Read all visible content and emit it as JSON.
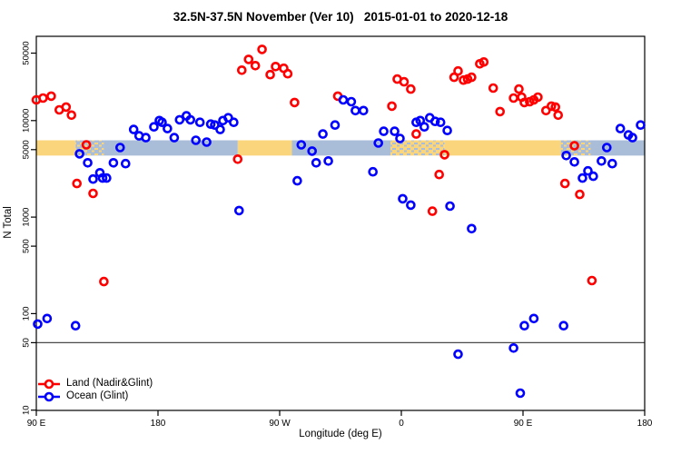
{
  "title": "32.5N-37.5N November (Ver 10)   2015-01-01 to 2020-12-18",
  "axes": {
    "x": {
      "label": "Longitude (deg E)",
      "range_deg": [
        90,
        540
      ],
      "ticks": [
        {
          "lon": 90,
          "label": "90 E"
        },
        {
          "lon": 180,
          "label": "180"
        },
        {
          "lon": 270,
          "label": "90 W"
        },
        {
          "lon": 360,
          "label": "0"
        },
        {
          "lon": 450,
          "label": "90 E"
        },
        {
          "lon": 540,
          "label": "180"
        }
      ]
    },
    "y": {
      "label": "N Total",
      "scale": "log10",
      "ticks": [
        {
          "value": 10,
          "label": "10"
        },
        {
          "value": 50,
          "label": "50"
        },
        {
          "value": 100,
          "label": "100"
        },
        {
          "value": 500,
          "label": "500"
        },
        {
          "value": 1000,
          "label": "1000"
        },
        {
          "value": 5000,
          "label": "5000"
        },
        {
          "value": 10000,
          "label": "10000"
        },
        {
          "value": 50000,
          "label": "50000"
        }
      ]
    }
  },
  "legend": [
    {
      "label": "Land (Nadir&Glint)",
      "color": "#ff0000"
    },
    {
      "label": "Ocean (Glint)",
      "color": "#0000ff"
    }
  ],
  "colors": {
    "land": "#ff0000",
    "ocean": "#0000ff",
    "band_land": "#fbd57c",
    "band_ocean": "#a9bdd9",
    "ref_line": "#4a4a4a",
    "frame": "#000000"
  },
  "reference": {
    "h_line_n": 50,
    "surface_band": {
      "n_low": 4340,
      "n_high": 6250,
      "segments": [
        {
          "from": 90,
          "to": 119,
          "type": "land"
        },
        {
          "from": 119,
          "to": 140,
          "type": "mixed-ocean"
        },
        {
          "from": 140,
          "to": 239,
          "type": "ocean"
        },
        {
          "from": 239,
          "to": 279,
          "type": "land"
        },
        {
          "from": 279,
          "to": 352,
          "type": "ocean"
        },
        {
          "from": 352,
          "to": 392,
          "type": "mixed-land"
        },
        {
          "from": 392,
          "to": 478,
          "type": "land"
        },
        {
          "from": 478,
          "to": 500,
          "type": "mixed-ocean"
        },
        {
          "from": 500,
          "to": 540,
          "type": "ocean"
        }
      ]
    }
  },
  "chart_data": {
    "type": "scatter",
    "xlabel": "Longitude (deg E)",
    "ylabel": "N Total",
    "x_axis_deg_east_continuous": [
      90,
      540
    ],
    "y_log_range": [
      10,
      60000
    ],
    "grid": false,
    "legend_position": "bottom-left",
    "series": [
      {
        "name": "Land (Nadir&Glint)",
        "color": "#ff0000",
        "points": [
          [
            90,
            16400
          ],
          [
            95,
            17100
          ],
          [
            101,
            17900
          ],
          [
            107,
            12900
          ],
          [
            112,
            13800
          ],
          [
            116,
            11400
          ],
          [
            120,
            2230
          ],
          [
            127,
            5610
          ],
          [
            132,
            1760
          ],
          [
            140,
            215
          ],
          [
            239,
            3980
          ],
          [
            242,
            33300
          ],
          [
            247,
            43100
          ],
          [
            252,
            37100
          ],
          [
            257,
            54600
          ],
          [
            263,
            29900
          ],
          [
            267,
            36300
          ],
          [
            273,
            34800
          ],
          [
            276,
            30600
          ],
          [
            281,
            15400
          ],
          [
            313,
            17900
          ],
          [
            353,
            14100
          ],
          [
            357,
            26900
          ],
          [
            362,
            25200
          ],
          [
            367,
            21200
          ],
          [
            371,
            7260
          ],
          [
            383,
            1150
          ],
          [
            388,
            2760
          ],
          [
            392,
            4430
          ],
          [
            399,
            28100
          ],
          [
            402,
            32600
          ],
          [
            406,
            26300
          ],
          [
            409,
            26900
          ],
          [
            412,
            28100
          ],
          [
            418,
            38700
          ],
          [
            421,
            40400
          ],
          [
            428,
            21700
          ],
          [
            433,
            12400
          ],
          [
            443,
            17100
          ],
          [
            447,
            21200
          ],
          [
            449,
            17500
          ],
          [
            451,
            15400
          ],
          [
            455,
            15700
          ],
          [
            458,
            16400
          ],
          [
            461,
            17500
          ],
          [
            467,
            12700
          ],
          [
            471,
            14100
          ],
          [
            474,
            13800
          ],
          [
            476,
            11400
          ],
          [
            481,
            2230
          ],
          [
            488,
            5490
          ],
          [
            492,
            1720
          ],
          [
            501,
            220
          ]
        ]
      },
      {
        "name": "Ocean (Glint)",
        "color": "#0000ff",
        "points": [
          [
            91,
            78
          ],
          [
            98,
            89
          ],
          [
            119,
            75
          ],
          [
            122,
            4530
          ],
          [
            128,
            3650
          ],
          [
            132,
            2480
          ],
          [
            137,
            2880
          ],
          [
            139,
            2540
          ],
          [
            142,
            2540
          ],
          [
            147,
            3650
          ],
          [
            152,
            5260
          ],
          [
            156,
            3580
          ],
          [
            162,
            8080
          ],
          [
            166,
            6950
          ],
          [
            171,
            6660
          ],
          [
            177,
            8620
          ],
          [
            181,
            10000
          ],
          [
            183,
            9600
          ],
          [
            187,
            8260
          ],
          [
            192,
            6660
          ],
          [
            196,
            10200
          ],
          [
            201,
            11200
          ],
          [
            204,
            10200
          ],
          [
            208,
            6250
          ],
          [
            211,
            9600
          ],
          [
            216,
            5980
          ],
          [
            219,
            9190
          ],
          [
            222,
            9000
          ],
          [
            226,
            8080
          ],
          [
            228,
            10000
          ],
          [
            232,
            10700
          ],
          [
            236,
            9600
          ],
          [
            240,
            1170
          ],
          [
            283,
            2380
          ],
          [
            286,
            5610
          ],
          [
            294,
            4830
          ],
          [
            297,
            3650
          ],
          [
            302,
            7260
          ],
          [
            306,
            3810
          ],
          [
            311,
            9000
          ],
          [
            317,
            16400
          ],
          [
            323,
            15700
          ],
          [
            326,
            12700
          ],
          [
            332,
            12700
          ],
          [
            339,
            2950
          ],
          [
            343,
            5860
          ],
          [
            347,
            7740
          ],
          [
            355,
            7740
          ],
          [
            359,
            6520
          ],
          [
            361,
            1550
          ],
          [
            367,
            1330
          ],
          [
            371,
            9600
          ],
          [
            374,
            10000
          ],
          [
            377,
            8620
          ],
          [
            381,
            10700
          ],
          [
            385,
            9800
          ],
          [
            389,
            9600
          ],
          [
            394,
            7900
          ],
          [
            396,
            1300
          ],
          [
            402,
            38
          ],
          [
            412,
            760
          ],
          [
            443,
            44
          ],
          [
            448,
            15
          ],
          [
            451,
            75
          ],
          [
            458,
            89
          ],
          [
            480,
            75
          ],
          [
            482,
            4340
          ],
          [
            488,
            3730
          ],
          [
            494,
            2540
          ],
          [
            498,
            3010
          ],
          [
            502,
            2650
          ],
          [
            508,
            3810
          ],
          [
            512,
            5260
          ],
          [
            516,
            3580
          ],
          [
            522,
            8260
          ],
          [
            528,
            7100
          ],
          [
            531,
            6660
          ],
          [
            537,
            9000
          ]
        ]
      }
    ]
  }
}
